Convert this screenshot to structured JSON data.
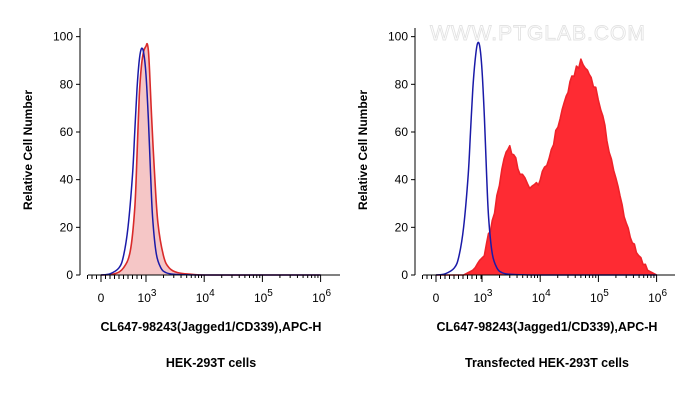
{
  "watermark": "WWW.PTGLAB.COM",
  "chart_data": [
    {
      "type": "area",
      "title": "",
      "ylabel": "Relative Cell Number",
      "xlabel": "CL647-98243(Jagged1/CD339),APC-H",
      "caption": "HEK-293T cells",
      "x_scale": "biexponential",
      "ylim": [
        0,
        100
      ],
      "y_ticks": [
        "0",
        "20",
        "40",
        "60",
        "80",
        "100"
      ],
      "x_tick_labels": [
        {
          "base": "0",
          "exp": ""
        },
        {
          "base": "10",
          "exp": "3"
        },
        {
          "base": "10",
          "exp": "4"
        },
        {
          "base": "10",
          "exp": "5"
        },
        {
          "base": "10",
          "exp": "6"
        }
      ],
      "series": [
        {
          "role": "isotype",
          "style": "line",
          "color": "#1a1aa8",
          "x": [
            0,
            200,
            400,
            500,
            600,
            700,
            750,
            800,
            850,
            900,
            950,
            1000,
            1100,
            1200,
            1300,
            1500,
            1800,
            2200,
            3000,
            5000,
            10000,
            100000,
            1000000
          ],
          "y": [
            0,
            0.5,
            3,
            8,
            20,
            42,
            60,
            78,
            90,
            95,
            93,
            84,
            65,
            42,
            24,
            9,
            3,
            1,
            0.3,
            0.1,
            0,
            0,
            0
          ]
        },
        {
          "role": "sample",
          "style": "area",
          "color": "#d92a2a",
          "fill": "#f5c6c6",
          "x": [
            0,
            300,
            500,
            650,
            750,
            800,
            850,
            900,
            950,
            1000,
            1050,
            1100,
            1150,
            1250,
            1400,
            1600,
            2000,
            2500,
            3500,
            6000,
            10000,
            100000,
            1000000
          ],
          "y": [
            0,
            0.5,
            3,
            10,
            28,
            50,
            75,
            88,
            94,
            96,
            97,
            94,
            86,
            66,
            43,
            22,
            8,
            3,
            1,
            0.3,
            0,
            0,
            0
          ]
        }
      ]
    },
    {
      "type": "area",
      "title": "",
      "ylabel": "Relative Cell Number",
      "xlabel": "CL647-98243(Jagged1/CD339),APC-H",
      "caption": "Transfected HEK-293T cells",
      "x_scale": "biexponential",
      "ylim": [
        0,
        100
      ],
      "y_ticks": [
        "0",
        "20",
        "40",
        "60",
        "80",
        "100"
      ],
      "x_tick_labels": [
        {
          "base": "0",
          "exp": ""
        },
        {
          "base": "10",
          "exp": "3"
        },
        {
          "base": "10",
          "exp": "4"
        },
        {
          "base": "10",
          "exp": "5"
        },
        {
          "base": "10",
          "exp": "6"
        }
      ],
      "series": [
        {
          "role": "isotype",
          "style": "line",
          "color": "#1a1aa8",
          "x": [
            0,
            200,
            400,
            500,
            600,
            700,
            750,
            800,
            850,
            900,
            950,
            1000,
            1100,
            1200,
            1300,
            1500,
            1800,
            2200,
            3000,
            5000,
            10000,
            100000,
            1000000
          ],
          "y": [
            0,
            0.5,
            3,
            8,
            20,
            42,
            60,
            78,
            90,
            97,
            96,
            86,
            66,
            42,
            24,
            9,
            3,
            1,
            0.3,
            0.1,
            0,
            0,
            0
          ]
        },
        {
          "role": "sample",
          "style": "area",
          "color": "#ee2229",
          "fill": "#fe2b33",
          "x": [
            0,
            600,
            800,
            1000,
            1200,
            1500,
            1800,
            2200,
            2600,
            3000,
            3500,
            4500,
            6000,
            8000,
            10000,
            13000,
            17000,
            22000,
            28000,
            35000,
            42000,
            50000,
            60000,
            75000,
            90000,
            110000,
            140000,
            200000,
            300000,
            450000,
            700000,
            1000000
          ],
          "y": [
            0,
            0,
            2,
            6,
            13,
            22,
            32,
            45,
            52,
            54,
            50,
            43,
            38,
            37,
            40,
            46,
            56,
            66,
            75,
            82,
            87,
            89,
            87,
            83,
            78,
            70,
            57,
            40,
            22,
            9,
            2,
            0
          ]
        }
      ]
    }
  ]
}
